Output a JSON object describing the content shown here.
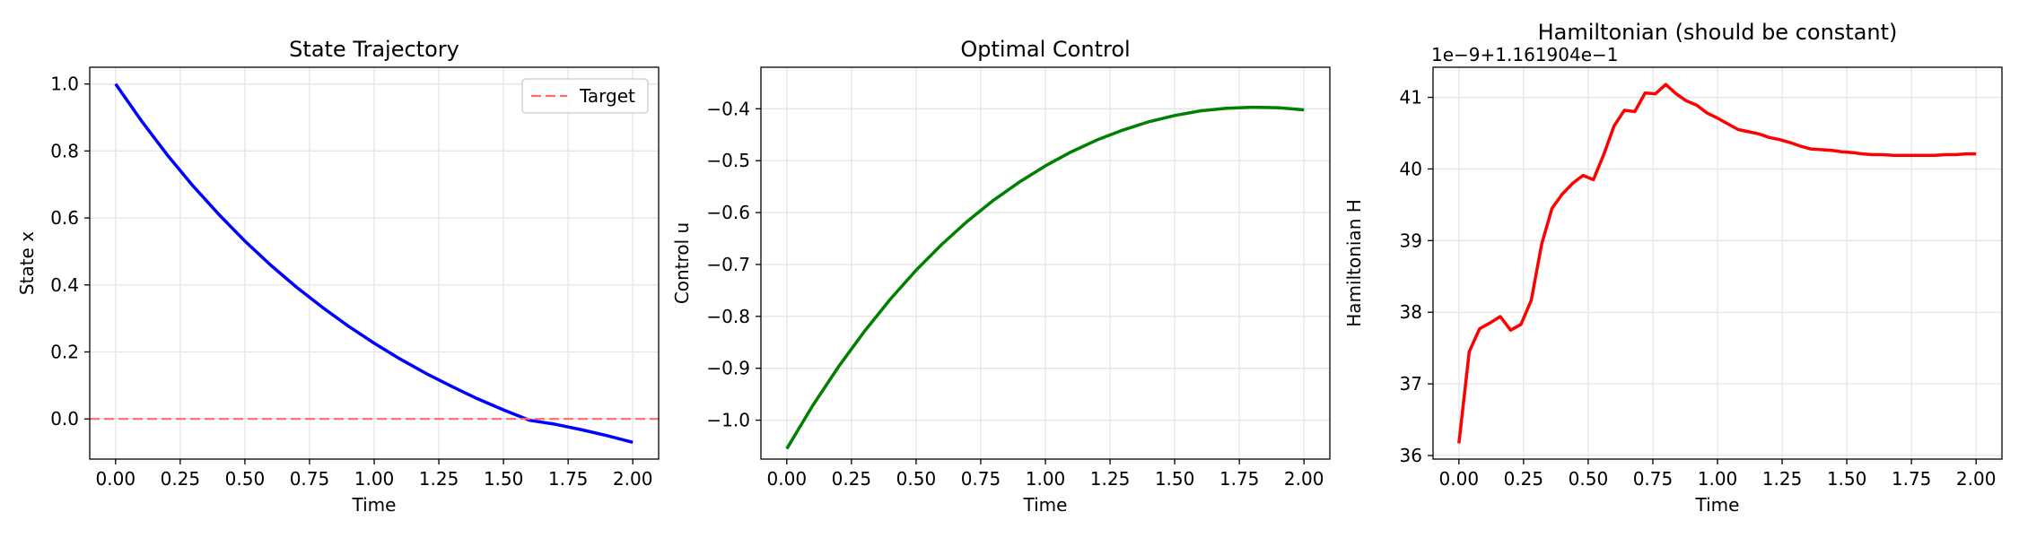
{
  "colors": {
    "state_line": "#0000ff",
    "control_line": "#008000",
    "hamiltonian_line": "#ff0000",
    "target_line": "#ff6b6b",
    "grid": "#e5e5e5",
    "axes": "#000000"
  },
  "chart_data": [
    {
      "type": "line",
      "title": "State Trajectory",
      "xlabel": "Time",
      "ylabel": "State x",
      "xlim": [
        -0.1,
        2.1
      ],
      "ylim": [
        -0.12,
        1.05
      ],
      "xticks": [
        0.0,
        0.25,
        0.5,
        0.75,
        1.0,
        1.25,
        1.5,
        1.75,
        2.0
      ],
      "xtick_labels": [
        "0.00",
        "0.25",
        "0.50",
        "0.75",
        "1.00",
        "1.25",
        "1.50",
        "1.75",
        "2.00"
      ],
      "yticks": [
        0.0,
        0.2,
        0.4,
        0.6,
        0.8,
        1.0
      ],
      "ytick_labels": [
        "0.0",
        "0.2",
        "0.4",
        "0.6",
        "0.8",
        "1.0"
      ],
      "grid": true,
      "legend": {
        "position": "upper right",
        "entries": [
          "Target"
        ]
      },
      "series": [
        {
          "color": "#0000ff",
          "style": "solid",
          "x": [
            0.0,
            0.1,
            0.2,
            0.3,
            0.4,
            0.5,
            0.6,
            0.7,
            0.8,
            0.9,
            1.0,
            1.1,
            1.2,
            1.3,
            1.4,
            1.5,
            1.6,
            1.7,
            1.8,
            1.9,
            2.0
          ],
          "y": [
            1.0,
            0.89,
            0.788,
            0.695,
            0.61,
            0.531,
            0.459,
            0.393,
            0.333,
            0.277,
            0.226,
            0.179,
            0.136,
            0.097,
            0.06,
            0.027,
            -0.004,
            -0.016,
            -0.032,
            -0.05,
            -0.07
          ]
        },
        {
          "name": "Target",
          "color": "#ff6b6b",
          "style": "dashed",
          "x": [
            -0.1,
            2.1
          ],
          "y": [
            0.0,
            0.0
          ]
        }
      ]
    },
    {
      "type": "line",
      "title": "Optimal Control",
      "xlabel": "Time",
      "ylabel": "Control u",
      "xlim": [
        -0.1,
        2.1
      ],
      "ylim": [
        -1.075,
        -0.32
      ],
      "xticks": [
        0.0,
        0.25,
        0.5,
        0.75,
        1.0,
        1.25,
        1.5,
        1.75,
        2.0
      ],
      "xtick_labels": [
        "0.00",
        "0.25",
        "0.50",
        "0.75",
        "1.00",
        "1.25",
        "1.50",
        "1.75",
        "2.00"
      ],
      "yticks": [
        -1.0,
        -0.9,
        -0.8,
        -0.7,
        -0.6,
        -0.5,
        -0.4
      ],
      "ytick_labels": [
        "−1.0",
        "−0.9",
        "−0.8",
        "−0.7",
        "−0.6",
        "−0.5",
        "−0.4"
      ],
      "grid": true,
      "series": [
        {
          "color": "#008000",
          "style": "solid",
          "x": [
            0.0,
            0.1,
            0.2,
            0.3,
            0.4,
            0.5,
            0.6,
            0.7,
            0.8,
            0.9,
            1.0,
            1.1,
            1.2,
            1.3,
            1.4,
            1.5,
            1.6,
            1.7,
            1.8,
            1.9,
            2.0
          ],
          "y": [
            -1.055,
            -0.972,
            -0.897,
            -0.829,
            -0.767,
            -0.711,
            -0.661,
            -0.616,
            -0.576,
            -0.541,
            -0.51,
            -0.483,
            -0.46,
            -0.441,
            -0.425,
            -0.413,
            -0.404,
            -0.399,
            -0.397,
            -0.398,
            -0.402
          ]
        }
      ]
    },
    {
      "type": "line",
      "title": "Hamiltonian (should be constant)",
      "xlabel": "Time",
      "ylabel": "Hamiltonian H",
      "axis_offset_text": "1e−9+1.161904e−1",
      "xlim": [
        -0.1,
        2.1
      ],
      "ylim": [
        35.95,
        41.42
      ],
      "xticks": [
        0.0,
        0.25,
        0.5,
        0.75,
        1.0,
        1.25,
        1.5,
        1.75,
        2.0
      ],
      "xtick_labels": [
        "0.00",
        "0.25",
        "0.50",
        "0.75",
        "1.00",
        "1.25",
        "1.50",
        "1.75",
        "2.00"
      ],
      "yticks": [
        36,
        37,
        38,
        39,
        40,
        41
      ],
      "ytick_labels": [
        "36",
        "37",
        "38",
        "39",
        "40",
        "41"
      ],
      "grid": true,
      "series": [
        {
          "color": "#ff0000",
          "style": "solid",
          "x": [
            0.0,
            0.04,
            0.08,
            0.12,
            0.16,
            0.2,
            0.24,
            0.28,
            0.32,
            0.36,
            0.4,
            0.44,
            0.48,
            0.52,
            0.56,
            0.6,
            0.64,
            0.68,
            0.72,
            0.76,
            0.8,
            0.84,
            0.88,
            0.92,
            0.96,
            1.0,
            1.04,
            1.08,
            1.12,
            1.16,
            1.2,
            1.24,
            1.28,
            1.32,
            1.36,
            1.4,
            1.44,
            1.48,
            1.52,
            1.56,
            1.6,
            1.64,
            1.68,
            1.72,
            1.76,
            1.8,
            1.84,
            1.88,
            1.92,
            1.96,
            2.0
          ],
          "y": [
            36.17,
            37.45,
            37.77,
            37.85,
            37.94,
            37.75,
            37.83,
            38.17,
            38.95,
            39.45,
            39.65,
            39.8,
            39.91,
            39.85,
            40.2,
            40.6,
            40.82,
            40.8,
            41.06,
            41.05,
            41.18,
            41.05,
            40.95,
            40.89,
            40.78,
            40.71,
            40.63,
            40.55,
            40.52,
            40.49,
            40.44,
            40.41,
            40.37,
            40.32,
            40.28,
            40.27,
            40.26,
            40.24,
            40.23,
            40.21,
            40.2,
            40.2,
            40.19,
            40.19,
            40.19,
            40.19,
            40.19,
            40.2,
            40.2,
            40.21,
            40.21
          ]
        }
      ]
    }
  ]
}
